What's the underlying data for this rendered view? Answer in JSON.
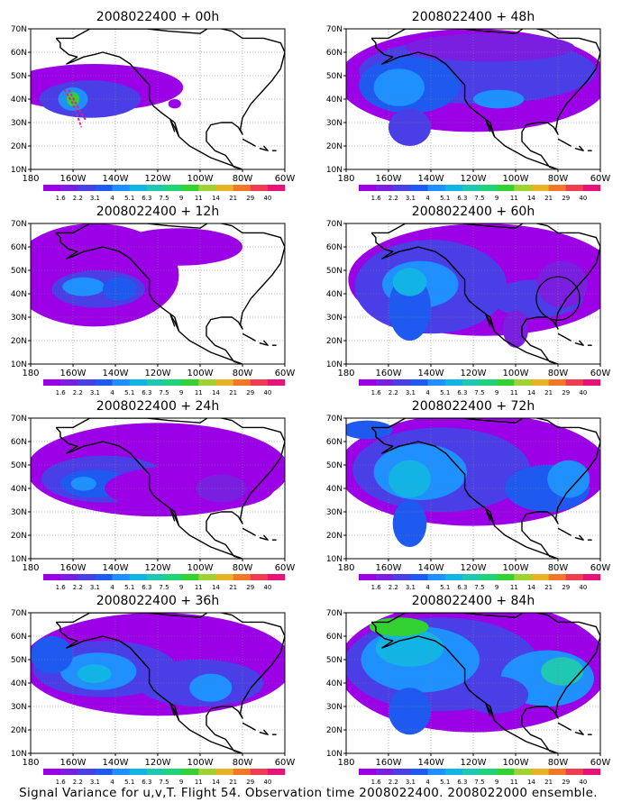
{
  "panels": [
    {
      "id": "p00",
      "title": "2008022400 + 00h",
      "shade": "p00"
    },
    {
      "id": "p48",
      "title": "2008022400 + 48h",
      "shade": "p48"
    },
    {
      "id": "p12",
      "title": "2008022400 + 12h",
      "shade": "p12"
    },
    {
      "id": "p60",
      "title": "2008022400 + 60h",
      "shade": "p60"
    },
    {
      "id": "p24",
      "title": "2008022400 + 24h",
      "shade": "p24"
    },
    {
      "id": "p72",
      "title": "2008022400 + 72h",
      "shade": "p72"
    },
    {
      "id": "p36",
      "title": "2008022400 + 36h",
      "shade": "p36"
    },
    {
      "id": "p84",
      "title": "2008022400 + 84h",
      "shade": "p84"
    }
  ],
  "lat_labels": [
    "10N",
    "20N",
    "30N",
    "40N",
    "50N",
    "60N",
    "70N"
  ],
  "lon_labels": [
    "180",
    "160W",
    "140W",
    "120W",
    "100W",
    "80W",
    "60W"
  ],
  "colorbar": {
    "labels": [
      "1.6",
      "2.2",
      "3.1",
      "4",
      "5.1",
      "6.3",
      "7.5",
      "9",
      "11",
      "14",
      "21",
      "29",
      "40"
    ],
    "colors": [
      "#9b00e6",
      "#7a1fe0",
      "#4a3ee6",
      "#1f5af0",
      "#1e90ff",
      "#12b4e6",
      "#20c8b4",
      "#20d27a",
      "#32d232",
      "#a0d232",
      "#e6b424",
      "#f07828",
      "#f03c50",
      "#e6147a"
    ]
  },
  "caption": "Signal Variance for u,v,T. Flight 54. Observation time 2008022400. 2008022000 ensemble."
}
